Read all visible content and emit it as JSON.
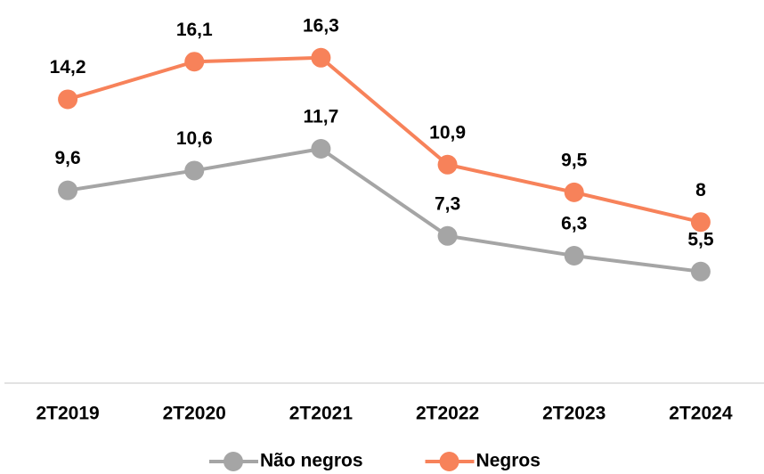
{
  "chart_data": {
    "type": "line",
    "categories": [
      "2T2019",
      "2T2020",
      "2T2021",
      "2T2022",
      "2T2023",
      "2T2024"
    ],
    "series": [
      {
        "name": "Não negros",
        "color": "#a5a5a5",
        "values": [
          9.6,
          10.6,
          11.7,
          7.3,
          6.3,
          5.5
        ],
        "value_labels": [
          "9,6",
          "10,6",
          "11,7",
          "7,3",
          "6,3",
          "5,5"
        ]
      },
      {
        "name": "Negros",
        "color": "#f7825a",
        "values": [
          14.2,
          16.1,
          16.3,
          10.9,
          9.5,
          8
        ],
        "value_labels": [
          "14,2",
          "16,1",
          "16,3",
          "10,9",
          "9,5",
          "8"
        ]
      }
    ],
    "ylim": [
      0,
      18
    ],
    "legend": "bottom"
  }
}
